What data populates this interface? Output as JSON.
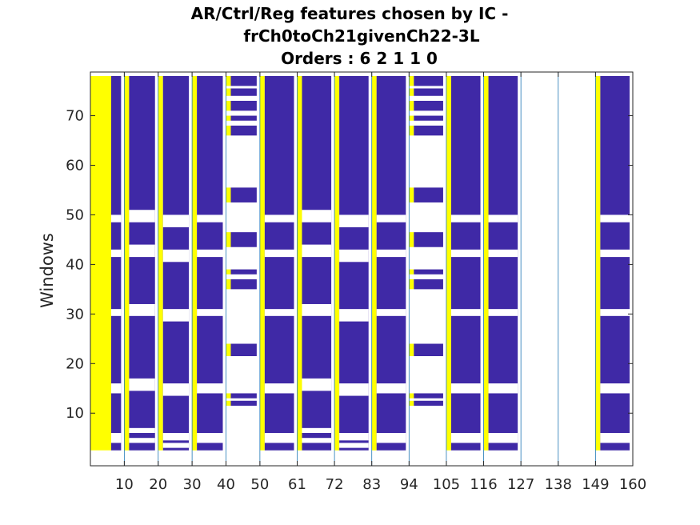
{
  "chart_data": {
    "type": "heatmap",
    "title": [
      "AR/Ctrl/Reg features chosen by IC -",
      "frCh0toCh21givenCh22-3L",
      "Orders : 6 2 1 1 0"
    ],
    "xlabel": "",
    "ylabel": "Windows",
    "xlim": [
      0,
      160
    ],
    "ylim": [
      1,
      78
    ],
    "x_ticks": [
      10,
      20,
      30,
      40,
      50,
      61,
      72,
      83,
      94,
      105,
      116,
      127,
      138,
      149,
      160
    ],
    "y_ticks": [
      10,
      20,
      30,
      40,
      50,
      60,
      70
    ],
    "colors": {
      "high": "#ffff00",
      "mid": "#3f29a6",
      "empty": "#ffffff",
      "separator": "#1f77b4"
    },
    "groups": [
      {
        "x_range": [
          0,
          10
        ],
        "pattern": "A"
      },
      {
        "x_range": [
          10,
          20
        ],
        "pattern": "B"
      },
      {
        "x_range": [
          20,
          30
        ],
        "pattern": "C"
      },
      {
        "x_range": [
          30,
          40
        ],
        "pattern": "A"
      },
      {
        "x_range": [
          40,
          50
        ],
        "pattern": "S"
      },
      {
        "x_range": [
          50,
          61
        ],
        "pattern": "A"
      },
      {
        "x_range": [
          61,
          72
        ],
        "pattern": "B"
      },
      {
        "x_range": [
          72,
          83
        ],
        "pattern": "C"
      },
      {
        "x_range": [
          83,
          94
        ],
        "pattern": "A"
      },
      {
        "x_range": [
          94,
          105
        ],
        "pattern": "S"
      },
      {
        "x_range": [
          105,
          116
        ],
        "pattern": "A"
      },
      {
        "x_range": [
          116,
          127
        ],
        "pattern": "A"
      },
      {
        "x_range": [
          127,
          138
        ],
        "pattern": "empty"
      },
      {
        "x_range": [
          138,
          149
        ],
        "pattern": "empty"
      },
      {
        "x_range": [
          149,
          160
        ],
        "pattern": "A"
      }
    ],
    "patterns": {
      "A": {
        "gaps": [
          [
            4,
            6
          ],
          [
            14,
            16
          ],
          [
            29.6,
            31
          ],
          [
            41.5,
            43
          ],
          [
            48.5,
            50
          ]
        ]
      },
      "B": {
        "gaps": [
          [
            4,
            5
          ],
          [
            6,
            7
          ],
          [
            14.5,
            17
          ],
          [
            29.6,
            32
          ],
          [
            41.5,
            44
          ],
          [
            48.5,
            51
          ]
        ]
      },
      "C": {
        "gaps": [
          [
            3,
            4
          ],
          [
            4.5,
            6
          ],
          [
            13.5,
            16
          ],
          [
            28.5,
            31
          ],
          [
            40.5,
            43
          ],
          [
            47.5,
            50
          ]
        ]
      },
      "S": {
        "bars": [
          [
            11.5,
            12.5
          ],
          [
            13,
            14
          ],
          [
            21.5,
            24
          ],
          [
            35,
            37
          ],
          [
            38,
            39
          ],
          [
            43.5,
            46.5
          ],
          [
            52.5,
            55.5
          ],
          [
            66,
            68
          ],
          [
            69,
            70
          ],
          [
            71,
            73
          ],
          [
            74,
            75.5
          ],
          [
            76,
            78
          ]
        ]
      }
    },
    "first_column_solid_yellow": true
  }
}
